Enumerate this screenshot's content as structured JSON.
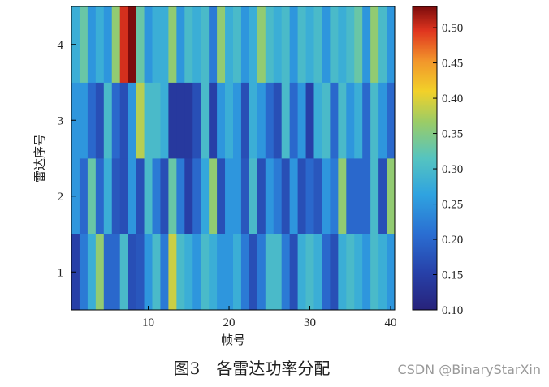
{
  "chart_data": {
    "type": "heatmap",
    "xlabel": "帧号",
    "ylabel": "雷达序号",
    "x_ticks": [
      10,
      20,
      30,
      40
    ],
    "y_ticks": [
      1,
      2,
      3,
      4
    ],
    "xlim": [
      0.5,
      40.5
    ],
    "ylim": [
      0.5,
      4.5
    ],
    "colorbar": {
      "min": 0.1,
      "max": 0.53,
      "ticks": [
        "0.10",
        "0.15",
        "0.20",
        "0.25",
        "0.30",
        "0.35",
        "0.40",
        "0.45",
        "0.50"
      ]
    },
    "rows": [
      {
        "radar": 1,
        "values": [
          0.15,
          0.22,
          0.28,
          0.36,
          0.2,
          0.2,
          0.3,
          0.17,
          0.18,
          0.25,
          0.3,
          0.22,
          0.39,
          0.3,
          0.28,
          0.25,
          0.3,
          0.28,
          0.25,
          0.25,
          0.28,
          0.22,
          0.17,
          0.22,
          0.3,
          0.3,
          0.22,
          0.17,
          0.28,
          0.3,
          0.28,
          0.2,
          0.17,
          0.28,
          0.3,
          0.28,
          0.25,
          0.3,
          0.28,
          0.25
        ]
      },
      {
        "radar": 2,
        "values": [
          0.25,
          0.2,
          0.33,
          0.2,
          0.28,
          0.18,
          0.17,
          0.25,
          0.17,
          0.3,
          0.22,
          0.17,
          0.33,
          0.22,
          0.15,
          0.2,
          0.27,
          0.36,
          0.17,
          0.25,
          0.25,
          0.18,
          0.3,
          0.17,
          0.25,
          0.22,
          0.17,
          0.25,
          0.17,
          0.2,
          0.18,
          0.25,
          0.22,
          0.36,
          0.2,
          0.2,
          0.2,
          0.3,
          0.17,
          0.36
        ]
      },
      {
        "radar": 3,
        "values": [
          0.25,
          0.25,
          0.2,
          0.17,
          0.3,
          0.2,
          0.17,
          0.25,
          0.38,
          0.3,
          0.3,
          0.28,
          0.14,
          0.14,
          0.14,
          0.17,
          0.3,
          0.15,
          0.25,
          0.28,
          0.25,
          0.17,
          0.28,
          0.25,
          0.2,
          0.17,
          0.3,
          0.2,
          0.25,
          0.15,
          0.28,
          0.3,
          0.2,
          0.3,
          0.25,
          0.28,
          0.2,
          0.3,
          0.25,
          0.2
        ]
      },
      {
        "radar": 4,
        "values": [
          0.28,
          0.33,
          0.25,
          0.28,
          0.25,
          0.36,
          0.5,
          0.53,
          0.33,
          0.25,
          0.28,
          0.28,
          0.36,
          0.25,
          0.3,
          0.28,
          0.3,
          0.22,
          0.36,
          0.28,
          0.3,
          0.25,
          0.28,
          0.36,
          0.3,
          0.28,
          0.3,
          0.25,
          0.3,
          0.28,
          0.3,
          0.25,
          0.3,
          0.28,
          0.3,
          0.33,
          0.25,
          0.36,
          0.3,
          0.25
        ]
      }
    ]
  },
  "caption": "图3　各雷达功率分配",
  "watermark": "CSDN @BinaryStarXin"
}
